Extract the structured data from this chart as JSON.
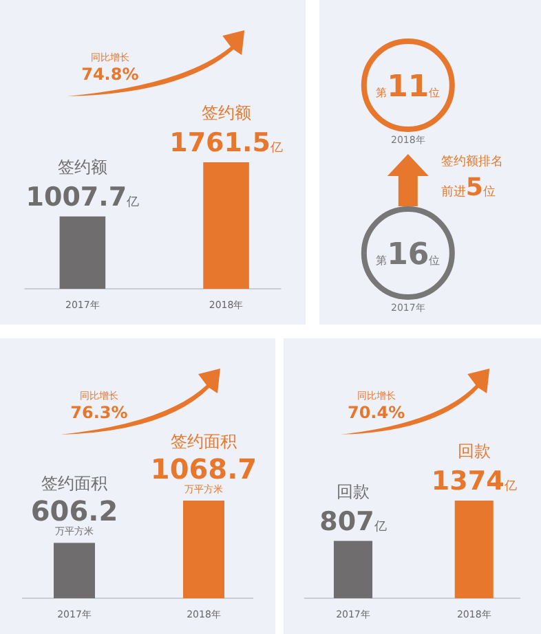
{
  "chart_data": [
    {
      "type": "bar",
      "categories": [
        "2017年",
        "2018年"
      ],
      "colors": [
        "#6f6d6d",
        "#e8772e"
      ],
      "series": [
        {
          "name": "签约额",
          "values": [
            1007.7,
            1761.5
          ],
          "value_labels": [
            "1007.7亿",
            "1761.5亿"
          ]
        }
      ],
      "annotations": [
        "同比增长",
        "74.8%"
      ]
    },
    {
      "type": "other",
      "annotations": [
        "第11位",
        "2018年",
        "签约额排名",
        "前进5位",
        "第16位",
        "2017年"
      ]
    },
    {
      "type": "bar",
      "categories": [
        "2017年",
        "2018年"
      ],
      "colors": [
        "#6f6d6d",
        "#e8772e"
      ],
      "series": [
        {
          "name": "签约面积",
          "values": [
            606.2,
            1068.7
          ],
          "value_labels": [
            "606.2",
            "1068.7"
          ]
        }
      ],
      "annotations": [
        "同比增长",
        "76.3%",
        {
          "text": "万平方米",
          "x": "2017年",
          "y": 606.2
        },
        {
          "text": "万平方米",
          "x": "2018年",
          "y": 1068.7
        }
      ]
    },
    {
      "type": "bar",
      "categories": [
        "2017年",
        "2018年"
      ],
      "colors": [
        "#6f6d6d",
        "#e8772e"
      ],
      "series": [
        {
          "name": "回款",
          "values": [
            807,
            1374
          ],
          "value_labels": [
            "807亿",
            "1374亿"
          ]
        }
      ],
      "annotations": [
        "同比增长",
        "70.4%"
      ]
    }
  ]
}
